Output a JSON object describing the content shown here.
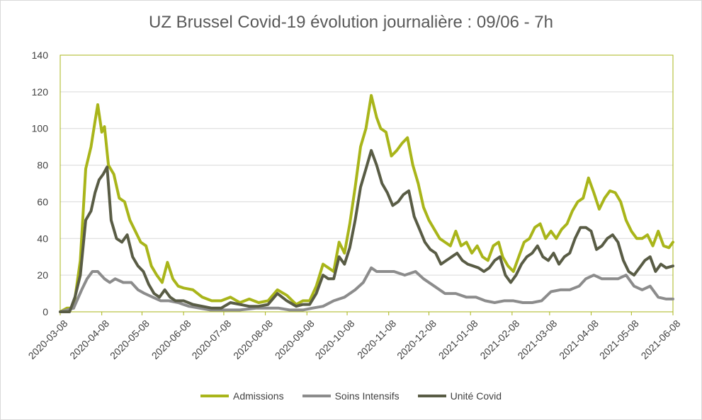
{
  "chart_data": {
    "type": "line",
    "title": "UZ Brussel Covid-19 évolution journalière : 09/06 - 7h",
    "xlabel": "",
    "ylabel": "",
    "ylim": [
      0,
      140
    ],
    "yticks": [
      0,
      20,
      40,
      60,
      80,
      100,
      120,
      140
    ],
    "xlim": [
      "2020-03-08",
      "2021-06-08"
    ],
    "xticks": [
      "2020-03-08",
      "2020-04-08",
      "2020-05-08",
      "2020-06-08",
      "2020-07-08",
      "2020-08-08",
      "2020-09-08",
      "2020-10-08",
      "2020-11-08",
      "2020-12-08",
      "2021-01-08",
      "2021-02-08",
      "2021-03-08",
      "2021-04-08",
      "2021-05-08",
      "2021-06-08"
    ],
    "grid": "horizontal",
    "legend_position": "bottom",
    "series": [
      {
        "name": "Admissions",
        "color": "#a9b51a",
        "points": [
          [
            "2020-03-08",
            0
          ],
          [
            "2020-03-13",
            2
          ],
          [
            "2020-03-18",
            2
          ],
          [
            "2020-03-23",
            28
          ],
          [
            "2020-03-27",
            78
          ],
          [
            "2020-03-31",
            90
          ],
          [
            "2020-04-03",
            104
          ],
          [
            "2020-04-05",
            113
          ],
          [
            "2020-04-08",
            98
          ],
          [
            "2020-04-10",
            101
          ],
          [
            "2020-04-13",
            80
          ],
          [
            "2020-04-17",
            75
          ],
          [
            "2020-04-21",
            62
          ],
          [
            "2020-04-25",
            60
          ],
          [
            "2020-04-29",
            50
          ],
          [
            "2020-05-03",
            44
          ],
          [
            "2020-05-07",
            38
          ],
          [
            "2020-05-11",
            36
          ],
          [
            "2020-05-15",
            25
          ],
          [
            "2020-05-19",
            20
          ],
          [
            "2020-05-23",
            16
          ],
          [
            "2020-05-27",
            27
          ],
          [
            "2020-05-31",
            18
          ],
          [
            "2020-06-04",
            14
          ],
          [
            "2020-06-08",
            13
          ],
          [
            "2020-06-15",
            12
          ],
          [
            "2020-06-22",
            8
          ],
          [
            "2020-06-29",
            6
          ],
          [
            "2020-07-06",
            6
          ],
          [
            "2020-07-13",
            8
          ],
          [
            "2020-07-20",
            5
          ],
          [
            "2020-07-27",
            7
          ],
          [
            "2020-08-03",
            5
          ],
          [
            "2020-08-10",
            6
          ],
          [
            "2020-08-17",
            12
          ],
          [
            "2020-08-24",
            9
          ],
          [
            "2020-08-31",
            4
          ],
          [
            "2020-09-05",
            6
          ],
          [
            "2020-09-10",
            6
          ],
          [
            "2020-09-15",
            14
          ],
          [
            "2020-09-20",
            26
          ],
          [
            "2020-09-24",
            24
          ],
          [
            "2020-09-28",
            22
          ],
          [
            "2020-10-02",
            38
          ],
          [
            "2020-10-06",
            32
          ],
          [
            "2020-10-10",
            48
          ],
          [
            "2020-10-14",
            68
          ],
          [
            "2020-10-18",
            90
          ],
          [
            "2020-10-22",
            100
          ],
          [
            "2020-10-26",
            118
          ],
          [
            "2020-10-30",
            106
          ],
          [
            "2020-11-02",
            100
          ],
          [
            "2020-11-06",
            98
          ],
          [
            "2020-11-10",
            85
          ],
          [
            "2020-11-14",
            88
          ],
          [
            "2020-11-18",
            92
          ],
          [
            "2020-11-22",
            95
          ],
          [
            "2020-11-26",
            80
          ],
          [
            "2020-11-30",
            70
          ],
          [
            "2020-12-04",
            57
          ],
          [
            "2020-12-08",
            50
          ],
          [
            "2020-12-12",
            45
          ],
          [
            "2020-12-16",
            40
          ],
          [
            "2020-12-20",
            38
          ],
          [
            "2020-12-24",
            36
          ],
          [
            "2020-12-28",
            44
          ],
          [
            "2021-01-01",
            36
          ],
          [
            "2021-01-05",
            38
          ],
          [
            "2021-01-09",
            32
          ],
          [
            "2021-01-13",
            36
          ],
          [
            "2021-01-17",
            30
          ],
          [
            "2021-01-21",
            28
          ],
          [
            "2021-01-25",
            36
          ],
          [
            "2021-01-29",
            38
          ],
          [
            "2021-02-01",
            30
          ],
          [
            "2021-02-05",
            25
          ],
          [
            "2021-02-09",
            22
          ],
          [
            "2021-02-13",
            30
          ],
          [
            "2021-02-17",
            38
          ],
          [
            "2021-02-21",
            40
          ],
          [
            "2021-02-25",
            46
          ],
          [
            "2021-03-01",
            48
          ],
          [
            "2021-03-05",
            40
          ],
          [
            "2021-03-09",
            44
          ],
          [
            "2021-03-13",
            40
          ],
          [
            "2021-03-17",
            45
          ],
          [
            "2021-03-21",
            48
          ],
          [
            "2021-03-25",
            55
          ],
          [
            "2021-03-29",
            60
          ],
          [
            "2021-04-02",
            62
          ],
          [
            "2021-04-06",
            73
          ],
          [
            "2021-04-10",
            65
          ],
          [
            "2021-04-14",
            56
          ],
          [
            "2021-04-18",
            62
          ],
          [
            "2021-04-22",
            66
          ],
          [
            "2021-04-26",
            65
          ],
          [
            "2021-04-30",
            60
          ],
          [
            "2021-05-04",
            50
          ],
          [
            "2021-05-08",
            44
          ],
          [
            "2021-05-12",
            40
          ],
          [
            "2021-05-16",
            40
          ],
          [
            "2021-05-20",
            42
          ],
          [
            "2021-05-24",
            36
          ],
          [
            "2021-05-28",
            44
          ],
          [
            "2021-06-01",
            36
          ],
          [
            "2021-06-05",
            35
          ],
          [
            "2021-06-08",
            38
          ]
        ]
      },
      {
        "name": "Soins Intensifs",
        "color": "#8c8c8c",
        "points": [
          [
            "2020-03-08",
            0
          ],
          [
            "2020-03-18",
            2
          ],
          [
            "2020-03-24",
            12
          ],
          [
            "2020-03-28",
            18
          ],
          [
            "2020-04-01",
            22
          ],
          [
            "2020-04-05",
            22
          ],
          [
            "2020-04-10",
            18
          ],
          [
            "2020-04-14",
            16
          ],
          [
            "2020-04-18",
            18
          ],
          [
            "2020-04-24",
            16
          ],
          [
            "2020-04-30",
            16
          ],
          [
            "2020-05-05",
            12
          ],
          [
            "2020-05-10",
            10
          ],
          [
            "2020-05-16",
            8
          ],
          [
            "2020-05-22",
            6
          ],
          [
            "2020-05-28",
            6
          ],
          [
            "2020-06-04",
            5
          ],
          [
            "2020-06-12",
            3
          ],
          [
            "2020-06-20",
            2
          ],
          [
            "2020-06-28",
            1
          ],
          [
            "2020-07-08",
            1
          ],
          [
            "2020-07-20",
            1
          ],
          [
            "2020-08-01",
            2
          ],
          [
            "2020-08-10",
            2
          ],
          [
            "2020-08-18",
            2
          ],
          [
            "2020-08-26",
            1
          ],
          [
            "2020-09-05",
            1
          ],
          [
            "2020-09-12",
            2
          ],
          [
            "2020-09-20",
            3
          ],
          [
            "2020-09-28",
            6
          ],
          [
            "2020-10-06",
            8
          ],
          [
            "2020-10-14",
            12
          ],
          [
            "2020-10-20",
            16
          ],
          [
            "2020-10-26",
            24
          ],
          [
            "2020-10-30",
            22
          ],
          [
            "2020-11-05",
            22
          ],
          [
            "2020-11-12",
            22
          ],
          [
            "2020-11-20",
            20
          ],
          [
            "2020-11-28",
            22
          ],
          [
            "2020-12-04",
            18
          ],
          [
            "2020-12-12",
            14
          ],
          [
            "2020-12-20",
            10
          ],
          [
            "2020-12-28",
            10
          ],
          [
            "2021-01-05",
            8
          ],
          [
            "2021-01-12",
            8
          ],
          [
            "2021-01-19",
            6
          ],
          [
            "2021-01-26",
            5
          ],
          [
            "2021-02-02",
            6
          ],
          [
            "2021-02-09",
            6
          ],
          [
            "2021-02-16",
            5
          ],
          [
            "2021-02-23",
            5
          ],
          [
            "2021-03-02",
            6
          ],
          [
            "2021-03-09",
            11
          ],
          [
            "2021-03-16",
            12
          ],
          [
            "2021-03-23",
            12
          ],
          [
            "2021-03-30",
            14
          ],
          [
            "2021-04-04",
            18
          ],
          [
            "2021-04-10",
            20
          ],
          [
            "2021-04-16",
            18
          ],
          [
            "2021-04-22",
            18
          ],
          [
            "2021-04-28",
            18
          ],
          [
            "2021-05-04",
            20
          ],
          [
            "2021-05-10",
            14
          ],
          [
            "2021-05-16",
            12
          ],
          [
            "2021-05-22",
            14
          ],
          [
            "2021-05-28",
            8
          ],
          [
            "2021-06-03",
            7
          ],
          [
            "2021-06-08",
            7
          ]
        ]
      },
      {
        "name": "Unité Covid",
        "color": "#595c45",
        "points": [
          [
            "2020-03-08",
            0
          ],
          [
            "2020-03-15",
            0
          ],
          [
            "2020-03-19",
            8
          ],
          [
            "2020-03-23",
            20
          ],
          [
            "2020-03-27",
            50
          ],
          [
            "2020-03-31",
            55
          ],
          [
            "2020-04-03",
            65
          ],
          [
            "2020-04-06",
            72
          ],
          [
            "2020-04-09",
            75
          ],
          [
            "2020-04-12",
            79
          ],
          [
            "2020-04-15",
            50
          ],
          [
            "2020-04-19",
            40
          ],
          [
            "2020-04-23",
            38
          ],
          [
            "2020-04-27",
            42
          ],
          [
            "2020-05-01",
            30
          ],
          [
            "2020-05-05",
            25
          ],
          [
            "2020-05-09",
            22
          ],
          [
            "2020-05-13",
            15
          ],
          [
            "2020-05-17",
            10
          ],
          [
            "2020-05-21",
            8
          ],
          [
            "2020-05-25",
            12
          ],
          [
            "2020-05-29",
            8
          ],
          [
            "2020-06-02",
            6
          ],
          [
            "2020-06-08",
            6
          ],
          [
            "2020-06-15",
            4
          ],
          [
            "2020-06-22",
            3
          ],
          [
            "2020-06-29",
            2
          ],
          [
            "2020-07-06",
            2
          ],
          [
            "2020-07-13",
            5
          ],
          [
            "2020-07-20",
            4
          ],
          [
            "2020-07-27",
            3
          ],
          [
            "2020-08-03",
            3
          ],
          [
            "2020-08-10",
            4
          ],
          [
            "2020-08-17",
            10
          ],
          [
            "2020-08-24",
            6
          ],
          [
            "2020-08-31",
            3
          ],
          [
            "2020-09-05",
            4
          ],
          [
            "2020-09-10",
            4
          ],
          [
            "2020-09-15",
            10
          ],
          [
            "2020-09-20",
            20
          ],
          [
            "2020-09-24",
            18
          ],
          [
            "2020-09-28",
            18
          ],
          [
            "2020-10-02",
            30
          ],
          [
            "2020-10-06",
            26
          ],
          [
            "2020-10-10",
            35
          ],
          [
            "2020-10-14",
            50
          ],
          [
            "2020-10-18",
            68
          ],
          [
            "2020-10-22",
            78
          ],
          [
            "2020-10-26",
            88
          ],
          [
            "2020-10-30",
            80
          ],
          [
            "2020-11-03",
            70
          ],
          [
            "2020-11-07",
            65
          ],
          [
            "2020-11-11",
            58
          ],
          [
            "2020-11-15",
            60
          ],
          [
            "2020-11-19",
            64
          ],
          [
            "2020-11-23",
            66
          ],
          [
            "2020-11-27",
            52
          ],
          [
            "2020-12-01",
            45
          ],
          [
            "2020-12-05",
            38
          ],
          [
            "2020-12-09",
            34
          ],
          [
            "2020-12-13",
            32
          ],
          [
            "2020-12-17",
            26
          ],
          [
            "2020-12-21",
            28
          ],
          [
            "2020-12-25",
            30
          ],
          [
            "2020-12-29",
            32
          ],
          [
            "2021-01-02",
            28
          ],
          [
            "2021-01-06",
            26
          ],
          [
            "2021-01-10",
            25
          ],
          [
            "2021-01-14",
            24
          ],
          [
            "2021-01-18",
            22
          ],
          [
            "2021-01-22",
            24
          ],
          [
            "2021-01-26",
            28
          ],
          [
            "2021-01-30",
            30
          ],
          [
            "2021-02-03",
            20
          ],
          [
            "2021-02-07",
            16
          ],
          [
            "2021-02-11",
            20
          ],
          [
            "2021-02-15",
            26
          ],
          [
            "2021-02-19",
            30
          ],
          [
            "2021-02-23",
            32
          ],
          [
            "2021-02-27",
            36
          ],
          [
            "2021-03-03",
            30
          ],
          [
            "2021-03-07",
            28
          ],
          [
            "2021-03-11",
            32
          ],
          [
            "2021-03-15",
            26
          ],
          [
            "2021-03-19",
            30
          ],
          [
            "2021-03-23",
            32
          ],
          [
            "2021-03-27",
            40
          ],
          [
            "2021-03-31",
            46
          ],
          [
            "2021-04-04",
            46
          ],
          [
            "2021-04-08",
            44
          ],
          [
            "2021-04-12",
            34
          ],
          [
            "2021-04-16",
            36
          ],
          [
            "2021-04-20",
            40
          ],
          [
            "2021-04-24",
            42
          ],
          [
            "2021-04-28",
            38
          ],
          [
            "2021-05-02",
            28
          ],
          [
            "2021-05-06",
            22
          ],
          [
            "2021-05-10",
            20
          ],
          [
            "2021-05-14",
            24
          ],
          [
            "2021-05-18",
            28
          ],
          [
            "2021-05-22",
            30
          ],
          [
            "2021-05-26",
            22
          ],
          [
            "2021-05-30",
            26
          ],
          [
            "2021-06-03",
            24
          ],
          [
            "2021-06-08",
            25
          ]
        ]
      }
    ]
  }
}
